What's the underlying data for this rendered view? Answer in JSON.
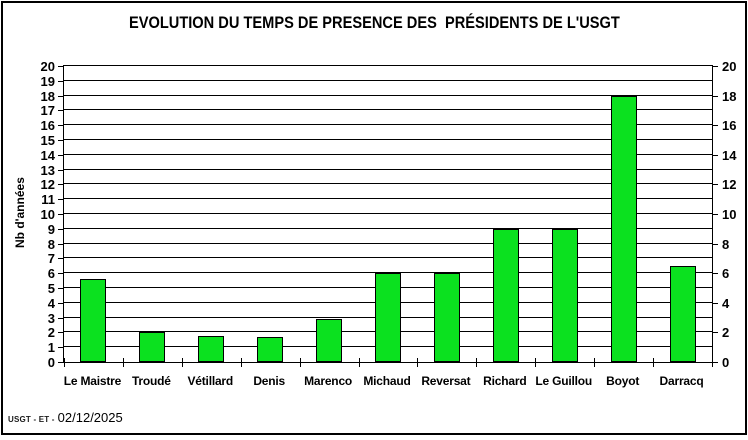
{
  "chart_data": {
    "type": "bar",
    "title": "EVOLUTION DU TEMPS DE PRESENCE DES  PRÉSIDENTS DE L'USGT",
    "ylabel": "Nb d'années",
    "xlabel": "",
    "categories": [
      "Le Maistre",
      "Troudé",
      "Vétillard",
      "Denis",
      "Marenco",
      "Michaud",
      "Reversat",
      "Richard",
      "Le Guillou",
      "Boyot",
      "Darracq"
    ],
    "values": [
      5.6,
      2,
      1.75,
      1.7,
      2.9,
      6,
      6,
      9,
      9,
      18,
      6.5
    ],
    "ylim": [
      0,
      20
    ],
    "grid": true,
    "grid_step": 1,
    "left_axis_tick_labels": [
      "0",
      "1",
      "2",
      "3",
      "4",
      "5",
      "6",
      "7",
      "8",
      "9",
      "10",
      "11",
      "12",
      "13",
      "14",
      "15",
      "16",
      "17",
      "18",
      "19",
      "20"
    ],
    "right_axis_tick_labels": [
      "0",
      "2",
      "4",
      "6",
      "8",
      "10",
      "12",
      "14",
      "16",
      "18",
      "20"
    ],
    "legend": "none",
    "bar_fill_color": "#0be11f",
    "bar_border_color": "#000000",
    "axis_color": "#000000"
  },
  "footer": {
    "watermark": "USGT - ET -",
    "date": "02/12/2025"
  }
}
